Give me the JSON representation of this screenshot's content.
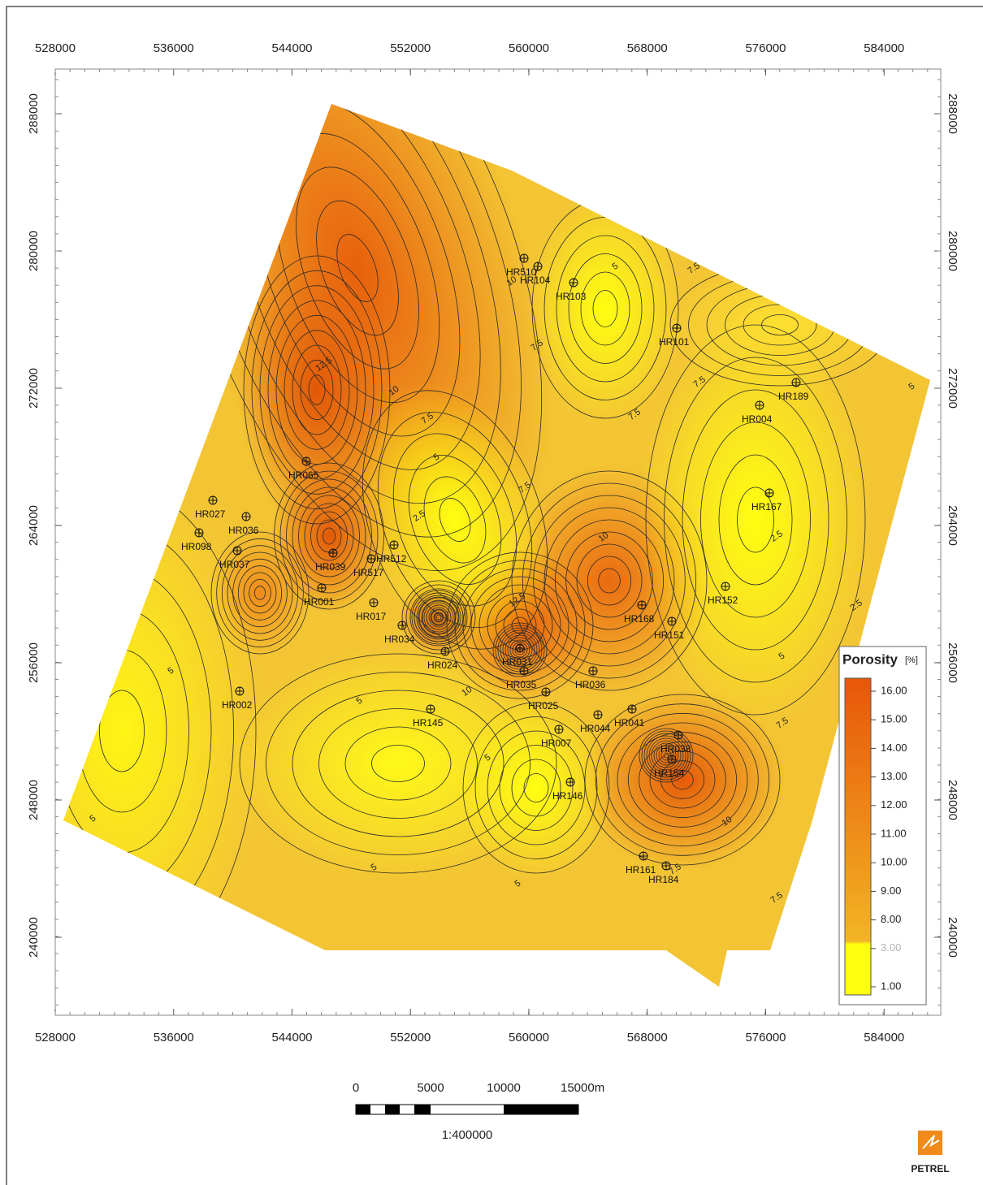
{
  "axes": {
    "x_ticks": [
      528000,
      536000,
      544000,
      552000,
      560000,
      568000,
      576000,
      584000
    ],
    "y_ticks": [
      288000,
      280000,
      272000,
      264000,
      256000,
      248000,
      240000
    ]
  },
  "wells": [
    "HR510",
    "HR104",
    "HR103",
    "HR101",
    "HR189",
    "HR004",
    "HR167",
    "HR065",
    "HR027",
    "HR036",
    "HR098",
    "HR037",
    "HR039",
    "HR512",
    "HR517",
    "HR001",
    "HR017",
    "HR034",
    "HR024",
    "HR035",
    "HR031",
    "HR036",
    "HR025",
    "HR007",
    "HR044",
    "HR041",
    "HR145",
    "HR146",
    "HR168",
    "HR151",
    "HR152",
    "HR154",
    "HR038",
    "HR161",
    "HR184",
    "HR002"
  ],
  "contour_labels": [
    "12.5",
    "10",
    "7.5",
    "5",
    "2.5",
    "10",
    "7.5",
    "5",
    "7.5",
    "7.5",
    "7.5",
    "5",
    "10",
    "7.5",
    "12.5",
    "2.5",
    "2.5",
    "5",
    "10",
    "5",
    "5",
    "5",
    "5",
    "5",
    "7.5",
    "10",
    "7.5",
    "7.5",
    "5"
  ],
  "legend": {
    "title": "Porosity",
    "unit": "[%]",
    "ticks": [
      {
        "value": 16,
        "label": "16.00"
      },
      {
        "value": 15,
        "label": "15.00"
      },
      {
        "value": 14,
        "label": "14.00"
      },
      {
        "value": 13,
        "label": "13.00"
      },
      {
        "value": 12,
        "label": "12.00"
      },
      {
        "value": 11,
        "label": "11.00"
      },
      {
        "value": 10,
        "label": "10.00"
      },
      {
        "value": 9,
        "label": "9.00"
      },
      {
        "value": 8,
        "label": "8.00"
      },
      {
        "value": 3,
        "label": "3.00"
      },
      {
        "value": 1,
        "label": "1.00"
      }
    ]
  },
  "scale_bar": {
    "labels": [
      "0",
      "5000",
      "10000",
      "15000m"
    ],
    "ratio": "1:400000"
  },
  "logo": "PETREL"
}
